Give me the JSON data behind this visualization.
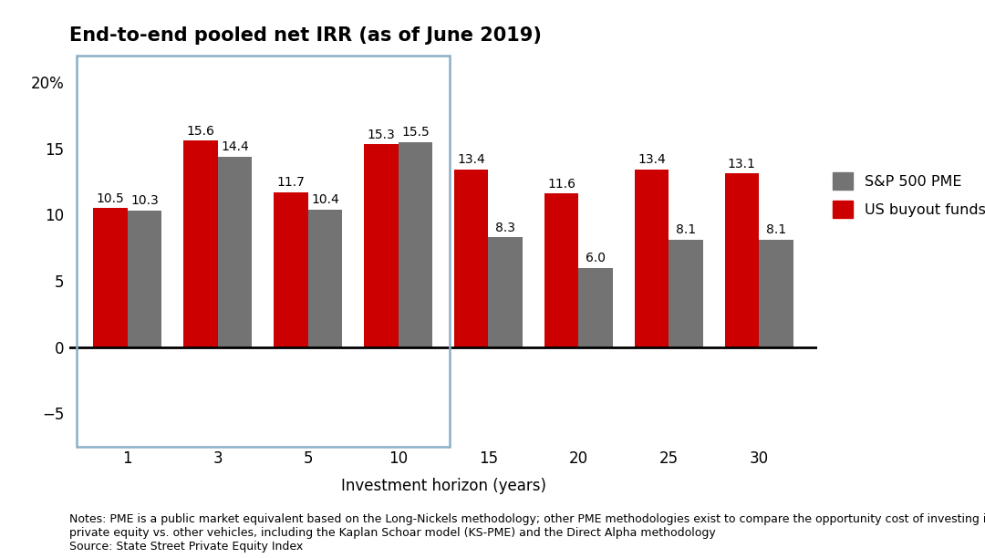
{
  "title": "End-to-end pooled net IRR (as of June 2019)",
  "xlabel": "Investment horizon (years)",
  "categories": [
    1,
    3,
    5,
    10,
    15,
    20,
    25,
    30
  ],
  "sp500_pme": [
    10.3,
    14.4,
    10.4,
    15.5,
    8.3,
    6.0,
    8.1,
    8.1
  ],
  "us_buyout": [
    10.5,
    15.6,
    11.7,
    15.3,
    13.4,
    11.6,
    13.4,
    13.1
  ],
  "sp500_color": "#737373",
  "buyout_color": "#CC0000",
  "ylim": [
    -7.5,
    22
  ],
  "yticks": [
    -5,
    0,
    5,
    10,
    15,
    20
  ],
  "ytick_labels": [
    "−5",
    "0",
    "5",
    "10",
    "15",
    "20%"
  ],
  "notes_line1": "Notes: PME is a public market equivalent based on the Long-Nickels methodology; other PME methodologies exist to compare the opportunity cost of investing in",
  "notes_line2": "private equity vs. other vehicles, including the Kaplan Schoar model (KS-PME) and the Direct Alpha methodology",
  "source": "Source: State Street Private Equity Index",
  "legend_sp500": "S&P 500 PME",
  "legend_buyout": "US buyout funds",
  "bar_width": 0.38,
  "background_color": "#FFFFFF",
  "title_fontsize": 15,
  "tick_fontsize": 12,
  "label_fontsize": 12,
  "notes_fontsize": 9,
  "box_color": "#8AAFC8",
  "value_fontsize": 10
}
